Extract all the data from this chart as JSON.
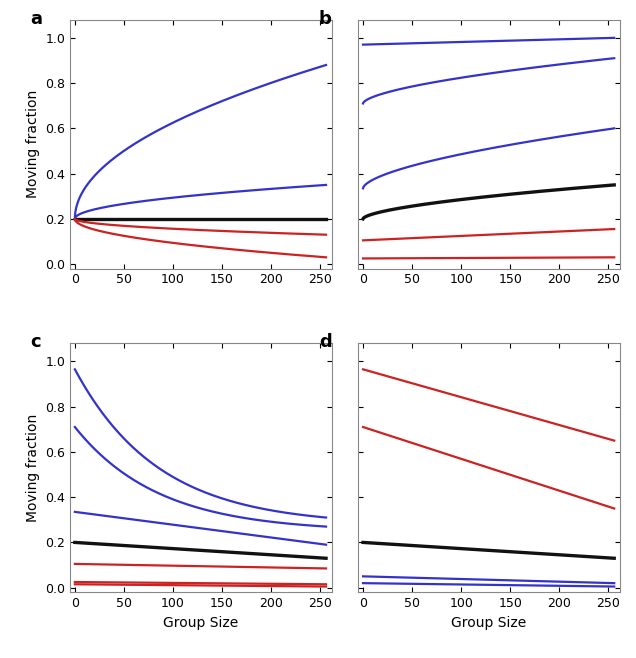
{
  "x_max": 256,
  "x_ticks": [
    0,
    50,
    100,
    150,
    200,
    250
  ],
  "y_ticks": [
    0.0,
    0.2,
    0.4,
    0.6,
    0.8,
    1.0
  ],
  "ylim": [
    -0.02,
    1.08
  ],
  "xlim": [
    -5,
    262
  ],
  "panel_labels": [
    "a",
    "b",
    "c",
    "d"
  ],
  "xlabel": "Group Size",
  "ylabel": "Moving fraction",
  "panels": {
    "a": {
      "lines": [
        {
          "color": "blue",
          "y0": 0.2,
          "y_end": 0.88,
          "shape": "sqrt_up"
        },
        {
          "color": "blue",
          "y0": 0.2,
          "y_end": 0.35,
          "shape": "sqrt_up"
        },
        {
          "color": "black",
          "y0": 0.2,
          "y_end": 0.2,
          "shape": "flat"
        },
        {
          "color": "red",
          "y0": 0.2,
          "y_end": 0.13,
          "shape": "sqrt_down"
        },
        {
          "color": "red",
          "y0": 0.2,
          "y_end": 0.03,
          "shape": "sqrt_down"
        }
      ]
    },
    "b": {
      "lines": [
        {
          "color": "blue",
          "y0": 0.97,
          "y_end": 1.0,
          "shape": "linear_up"
        },
        {
          "color": "blue",
          "y0": 0.71,
          "y_end": 0.91,
          "shape": "concave_up"
        },
        {
          "color": "blue",
          "y0": 0.335,
          "y_end": 0.6,
          "shape": "concave_up"
        },
        {
          "color": "black",
          "y0": 0.2,
          "y_end": 0.35,
          "shape": "concave_up"
        },
        {
          "color": "red",
          "y0": 0.105,
          "y_end": 0.155,
          "shape": "linear_up"
        },
        {
          "color": "red",
          "y0": 0.025,
          "y_end": 0.03,
          "shape": "linear_up"
        }
      ]
    },
    "c": {
      "lines": [
        {
          "color": "blue",
          "y0": 0.965,
          "y_end": 0.31,
          "shape": "concave_down"
        },
        {
          "color": "blue",
          "y0": 0.71,
          "y_end": 0.27,
          "shape": "concave_down"
        },
        {
          "color": "blue",
          "y0": 0.335,
          "y_end": 0.19,
          "shape": "linear_down"
        },
        {
          "color": "black",
          "y0": 0.2,
          "y_end": 0.13,
          "shape": "linear_down"
        },
        {
          "color": "red",
          "y0": 0.105,
          "y_end": 0.085,
          "shape": "linear_down"
        },
        {
          "color": "red",
          "y0": 0.025,
          "y_end": 0.015,
          "shape": "linear_down"
        },
        {
          "color": "red",
          "y0": 0.015,
          "y_end": 0.005,
          "shape": "linear_down"
        }
      ]
    },
    "d": {
      "lines": [
        {
          "color": "red",
          "y0": 0.965,
          "y_end": 0.65,
          "shape": "linear_down"
        },
        {
          "color": "red",
          "y0": 0.71,
          "y_end": 0.35,
          "shape": "linear_down"
        },
        {
          "color": "black",
          "y0": 0.2,
          "y_end": 0.13,
          "shape": "linear_down"
        },
        {
          "color": "blue",
          "y0": 0.05,
          "y_end": 0.02,
          "shape": "linear_down"
        },
        {
          "color": "blue",
          "y0": 0.02,
          "y_end": 0.005,
          "shape": "linear_down"
        }
      ]
    }
  },
  "line_width": 1.6,
  "black_lw_mult": 1.5,
  "colors": {
    "blue": "#3333cc",
    "red": "#cc2222",
    "black": "#111111"
  }
}
